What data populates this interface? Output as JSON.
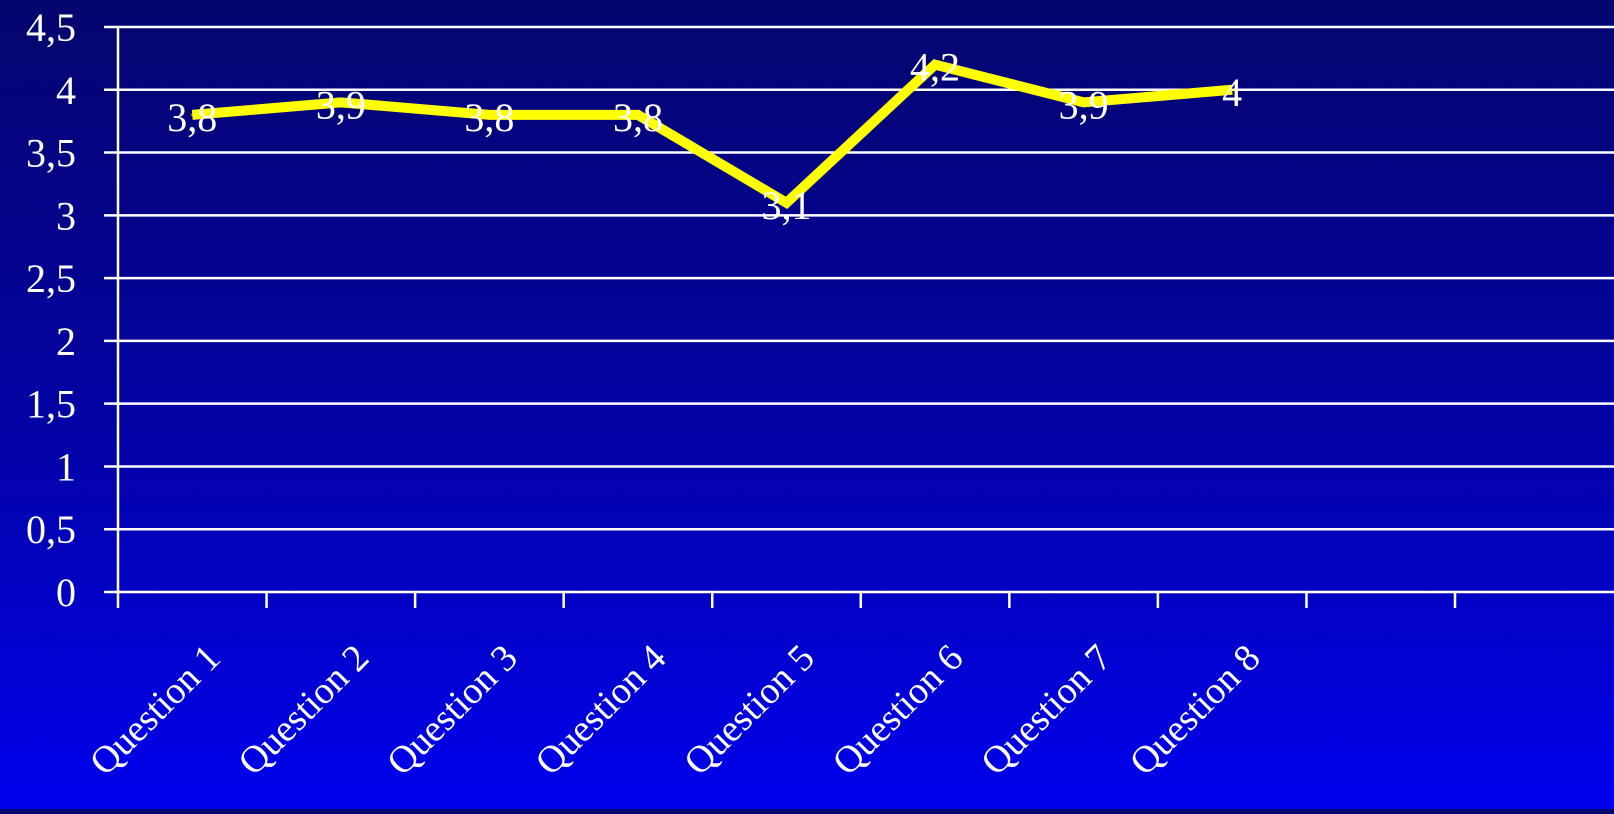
{
  "chart_data": {
    "type": "line",
    "title": "",
    "xlabel": "",
    "ylabel": "",
    "categories": [
      "Question 1",
      "Question 2",
      "Question 3",
      "Question 4",
      "Question 5",
      "Question 6",
      "Question 7",
      "Question 8"
    ],
    "series": [
      {
        "values": [
          3.8,
          3.9,
          3.8,
          3.8,
          3.1,
          4.2,
          3.9,
          4
        ],
        "labels": [
          "3,8",
          "3,9",
          "3,8",
          "3,8",
          "3,1",
          "4,2",
          "3,9",
          "4"
        ],
        "color": "#ffff00"
      }
    ],
    "ylim": [
      0,
      4.5
    ],
    "yticks": [
      "0",
      "0,5",
      "1",
      "1,5",
      "2",
      "2,5",
      "3",
      "3,5",
      "4",
      "4,5"
    ],
    "grid": true,
    "legend": "none"
  },
  "colors": {
    "background_top": "#05056e",
    "background_bottom": "#0000ee",
    "grid": "#ffffff",
    "text": "#ffffff",
    "line": "#ffff00"
  }
}
